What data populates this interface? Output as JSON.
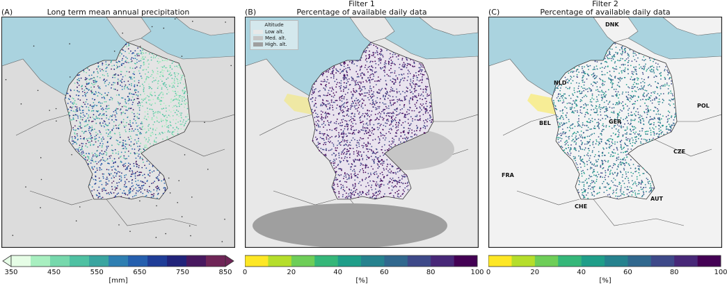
{
  "panels": [
    {
      "letter": "(A)",
      "title": "Long term mean annual precipitation",
      "colorbar": {
        "label": "[mm]",
        "ticks": [
          "350",
          "450",
          "550",
          "650",
          "750",
          "850"
        ],
        "colors": [
          "#e6fde6",
          "#a8efc0",
          "#76d8ac",
          "#4fc1a2",
          "#3aa5a0",
          "#2f7fb2",
          "#255fae",
          "#1f3d97",
          "#21237a",
          "#48185f",
          "#6f2557"
        ]
      }
    },
    {
      "letter": "(B)",
      "title": "Filter 1\nPercentage of available daily data",
      "legend": {
        "title": "Altitude",
        "items": [
          {
            "label": "Low alt.",
            "color": "#e8e8e8"
          },
          {
            "label": "Med. alt.",
            "color": "#c6c6c6"
          },
          {
            "label": "High. alt.",
            "color": "#9f9f9f"
          }
        ]
      },
      "colorbar": {
        "label": "[%]",
        "ticks": [
          "0",
          "20",
          "40",
          "60",
          "80",
          "100"
        ],
        "colors": [
          "#fde725",
          "#b5de2b",
          "#6ece58",
          "#35b779",
          "#1f9e89",
          "#26828e",
          "#31688e",
          "#3e4989",
          "#482878",
          "#440154"
        ]
      }
    },
    {
      "letter": "(C)",
      "title": "Filter 2\nPercentage of available daily data",
      "labels": [
        "DNK",
        "NLD",
        "POL",
        "BEL",
        "GER",
        "CZE",
        "FRA",
        "CHE",
        "AUT"
      ],
      "colorbar": {
        "label": "[%]",
        "ticks": [
          "0",
          "20",
          "40",
          "60",
          "80",
          "100"
        ],
        "colors": [
          "#fde725",
          "#b5de2b",
          "#6ece58",
          "#35b779",
          "#1f9e89",
          "#26828e",
          "#31688e",
          "#3e4989",
          "#482878",
          "#440154"
        ]
      }
    }
  ],
  "colors": {
    "sea": "#aad3df",
    "land_a": "#dcdcdc",
    "land_c": "#f2f2f2",
    "border": "#333333"
  }
}
